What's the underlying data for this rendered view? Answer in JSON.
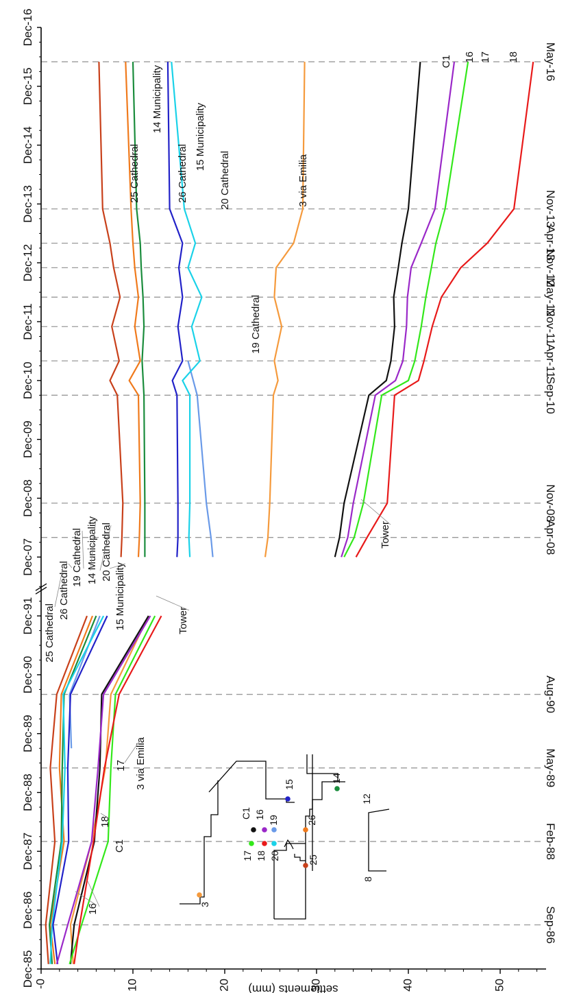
{
  "chart_data": {
    "type": "line",
    "ylabel": "settlements (mm)",
    "ylim": [
      0,
      55
    ],
    "y_ticks": [
      0,
      10,
      20,
      30,
      40,
      50
    ],
    "y_tick_labels": [
      "-0",
      "10",
      "20",
      "30",
      "40",
      "50"
    ],
    "x_axis_break": true,
    "x_ticks": [
      "Dec-85",
      "Dec-86",
      "Dec-87",
      "Dec-88",
      "Dec-89",
      "Dec-90",
      "Dec-91",
      "Dec-07",
      "Dec-08",
      "Dec-09",
      "Dec-10",
      "Dec-11",
      "Dec-12",
      "Dec-13",
      "Dec-14",
      "Dec-15",
      "Dec-16"
    ],
    "x_tick_index": [
      0,
      12,
      24,
      36,
      48,
      60,
      72,
      84,
      96,
      108,
      120,
      132,
      144,
      156,
      168,
      180,
      192
    ],
    "survey_dates": [
      {
        "label": "Sep-86",
        "x": 9
      },
      {
        "label": "Feb-88",
        "x": 26
      },
      {
        "label": "May-89",
        "x": 41
      },
      {
        "label": "Aug-90",
        "x": 56
      },
      {
        "label": "Apr-08",
        "x": 88
      },
      {
        "label": "Nov-08",
        "x": 95
      },
      {
        "label": "Sep-10",
        "x": 117
      },
      {
        "label": "Apr-11",
        "x": 124
      },
      {
        "label": "Nov-11",
        "x": 131
      },
      {
        "label": "May-12",
        "x": 137
      },
      {
        "label": "Nov-12",
        "x": 143
      },
      {
        "label": "Apr-13",
        "x": 148
      },
      {
        "label": "Nov-13",
        "x": 155
      },
      {
        "label": "May-16",
        "x": 185
      }
    ],
    "series": [
      {
        "name": "25 Cathedral",
        "color": "#c8401a",
        "segments": [
          [
            [
              1,
              0.8
            ],
            [
              9,
              0.5
            ],
            [
              26,
              1.5
            ],
            [
              41,
              1.0
            ],
            [
              56,
              1.7
            ],
            [
              72,
              5.0
            ]
          ],
          [
            [
              84,
              8.7
            ],
            [
              88,
              8.8
            ],
            [
              95,
              8.9
            ],
            [
              117,
              8.3
            ],
            [
              120,
              7.5
            ],
            [
              124,
              8.5
            ],
            [
              131,
              7.7
            ],
            [
              137,
              8.6
            ],
            [
              143,
              7.9
            ],
            [
              148,
              7.5
            ],
            [
              155,
              6.7
            ],
            [
              185,
              6.3
            ]
          ]
        ]
      },
      {
        "name": "26 Cathedral",
        "color": "#f07a1c",
        "segments": [
          [
            [
              1,
              1.5
            ],
            [
              9,
              1.0
            ],
            [
              26,
              2.5
            ],
            [
              41,
              2.0
            ],
            [
              56,
              2.2
            ],
            [
              72,
              5.6
            ]
          ],
          [
            [
              84,
              10.6
            ],
            [
              88,
              10.7
            ],
            [
              95,
              10.8
            ],
            [
              117,
              10.6
            ],
            [
              120,
              9.6
            ],
            [
              124,
              10.8
            ],
            [
              131,
              10.2
            ],
            [
              137,
              10.6
            ],
            [
              143,
              10.2
            ],
            [
              148,
              10.0
            ],
            [
              155,
              9.8
            ],
            [
              185,
              9.2
            ]
          ]
        ]
      },
      {
        "name": "14 Municipality",
        "color": "#1a8c3c",
        "segments": [
          [
            [
              1,
              1.2
            ],
            [
              9,
              0.9
            ],
            [
              26,
              2.2
            ],
            [
              41,
              2.3
            ],
            [
              56,
              2.5
            ],
            [
              72,
              6.0
            ]
          ],
          [
            [
              84,
              11.3
            ],
            [
              88,
              11.3
            ],
            [
              95,
              11.3
            ],
            [
              117,
              11.2
            ],
            [
              124,
              11.0
            ],
            [
              131,
              11.2
            ],
            [
              137,
              11.1
            ],
            [
              143,
              10.9
            ],
            [
              148,
              10.8
            ],
            [
              155,
              10.4
            ],
            [
              185,
              10.0
            ]
          ]
        ]
      },
      {
        "name": "19 Cathedral",
        "color": "#6a9ae8",
        "segments": [
          [
            [
              45,
              3.3
            ],
            [
              56,
              3.1
            ],
            [
              72,
              6.4
            ]
          ],
          [
            [
              84,
              18.7
            ],
            [
              88,
              18.5
            ],
            [
              95,
              18.0
            ],
            [
              117,
              17.0
            ],
            [
              124,
              16.0
            ]
          ]
        ]
      },
      {
        "name": "20 Cathedral",
        "color": "#1ad2e8",
        "segments": [
          [
            [
              1,
              1.0
            ],
            [
              9,
              1.2
            ],
            [
              26,
              2.3
            ],
            [
              41,
              2.6
            ],
            [
              56,
              2.4
            ],
            [
              72,
              6.8
            ]
          ],
          [
            [
              84,
              16.2
            ],
            [
              88,
              16.1
            ],
            [
              95,
              16.2
            ],
            [
              117,
              16.2
            ],
            [
              120,
              15.4
            ],
            [
              124,
              17.3
            ],
            [
              131,
              16.4
            ],
            [
              137,
              17.5
            ],
            [
              143,
              16.0
            ],
            [
              148,
              16.8
            ],
            [
              155,
              15.6
            ],
            [
              185,
              14.2
            ]
          ]
        ]
      },
      {
        "name": "15 Municipality",
        "color": "#2222c8",
        "segments": [
          [
            [
              1,
              1.8
            ],
            [
              9,
              1.3
            ],
            [
              26,
              3.0
            ],
            [
              41,
              2.9
            ],
            [
              56,
              3.2
            ],
            [
              72,
              7.2
            ]
          ],
          [
            [
              84,
              14.8
            ],
            [
              88,
              14.9
            ],
            [
              95,
              14.9
            ],
            [
              117,
              14.8
            ],
            [
              120,
              14.3
            ],
            [
              124,
              15.4
            ],
            [
              131,
              14.9
            ],
            [
              137,
              15.4
            ],
            [
              143,
              15.0
            ],
            [
              148,
              15.4
            ],
            [
              155,
              14.0
            ],
            [
              185,
              13.8
            ]
          ]
        ]
      },
      {
        "name": "3 via Emilia",
        "color": "#f59a3c",
        "segments": [
          [
            [
              1,
              3.5
            ],
            [
              9,
              3.2
            ],
            [
              26,
              5.5
            ],
            [
              41,
              7.0
            ],
            [
              56,
              7.6
            ],
            [
              72,
              11.7
            ]
          ],
          [
            [
              84,
              24.4
            ],
            [
              88,
              24.7
            ],
            [
              95,
              24.9
            ],
            [
              117,
              25.3
            ],
            [
              120,
              25.8
            ],
            [
              124,
              25.4
            ],
            [
              131,
              26.2
            ],
            [
              137,
              25.4
            ],
            [
              143,
              25.6
            ],
            [
              148,
              27.5
            ],
            [
              155,
              28.5
            ],
            [
              185,
              28.7
            ]
          ]
        ]
      },
      {
        "name": "C1",
        "color": "#111111",
        "segments": [
          [
            [
              1,
              3.2
            ],
            [
              9,
              3.6
            ],
            [
              26,
              5.8
            ],
            [
              41,
              6.4
            ],
            [
              56,
              6.6
            ],
            [
              72,
              11.7
            ]
          ],
          [
            [
              84,
              32.0
            ],
            [
              88,
              32.5
            ],
            [
              95,
              33.0
            ],
            [
              117,
              35.7
            ],
            [
              120,
              37.6
            ],
            [
              124,
              38.1
            ],
            [
              131,
              38.5
            ],
            [
              137,
              38.4
            ],
            [
              143,
              38.9
            ],
            [
              148,
              39.3
            ],
            [
              155,
              40.0
            ],
            [
              185,
              41.3
            ]
          ]
        ]
      },
      {
        "name": "16",
        "color": "#9a28c8",
        "segments": [
          [
            [
              1,
              1.7
            ],
            [
              9,
              2.9
            ],
            [
              26,
              5.5
            ],
            [
              41,
              6.2
            ],
            [
              56,
              6.8
            ],
            [
              72,
              11.9
            ]
          ],
          [
            [
              84,
              32.7
            ],
            [
              88,
              33.4
            ],
            [
              95,
              34.0
            ],
            [
              117,
              36.4
            ],
            [
              120,
              38.6
            ],
            [
              124,
              39.4
            ],
            [
              131,
              39.8
            ],
            [
              137,
              39.9
            ],
            [
              143,
              40.3
            ],
            [
              148,
              41.4
            ],
            [
              155,
              42.9
            ],
            [
              185,
              45.0
            ]
          ]
        ]
      },
      {
        "name": "17",
        "color": "#33e81a",
        "segments": [
          [
            [
              1,
              3.1
            ],
            [
              9,
              4.4
            ],
            [
              26,
              7.3
            ],
            [
              41,
              7.6
            ],
            [
              56,
              8.1
            ],
            [
              72,
              12.4
            ]
          ],
          [
            [
              84,
              33.0
            ],
            [
              88,
              34.1
            ],
            [
              95,
              35.1
            ],
            [
              117,
              37.1
            ],
            [
              120,
              40.0
            ],
            [
              124,
              40.7
            ],
            [
              131,
              41.4
            ],
            [
              137,
              41.9
            ],
            [
              143,
              42.5
            ],
            [
              148,
              43.0
            ],
            [
              155,
              44.0
            ],
            [
              185,
              46.5
            ]
          ]
        ]
      },
      {
        "name": "18",
        "color": "#e81a1a",
        "segments": [
          [
            [
              1,
              3.6
            ],
            [
              9,
              4.2
            ],
            [
              26,
              5.7
            ],
            [
              41,
              6.9
            ],
            [
              56,
              8.5
            ],
            [
              72,
              13.1
            ]
          ],
          [
            [
              84,
              34.3
            ],
            [
              88,
              35.5
            ],
            [
              95,
              37.7
            ],
            [
              117,
              38.5
            ],
            [
              120,
              41.1
            ],
            [
              124,
              41.7
            ],
            [
              131,
              42.6
            ],
            [
              137,
              43.6
            ],
            [
              143,
              45.7
            ],
            [
              148,
              48.6
            ],
            [
              155,
              51.5
            ],
            [
              185,
              53.6
            ]
          ]
        ]
      }
    ],
    "annotations": [
      "25 Cathedral",
      "26 Cathedral",
      "19 Cathedral",
      "14 Municipality",
      "20 Cathedral",
      "15 Municipality",
      "Tower",
      "3 via Emilia",
      "17",
      "18",
      "C1",
      "16",
      "14 Municipality",
      "25 Cathedral",
      "26 Cathedral",
      "15 Municipality",
      "20 Cathedral",
      "3 via Emilia",
      "19 Cathedral",
      "Tower",
      "C1",
      "16",
      "17",
      "18"
    ],
    "site_plan_labels": [
      "3",
      "C1",
      "16",
      "17",
      "18",
      "20",
      "19",
      "26",
      "25",
      "15",
      "14",
      "12",
      "8"
    ],
    "site_plan_colors": {
      "3": "#f59a3c",
      "C1": "#111111",
      "16": "#9a28c8",
      "17": "#33e81a",
      "18": "#e81a1a",
      "20": "#1ad2e8",
      "19": "#6a9ae8",
      "26": "#f07a1c",
      "25": "#c8401a",
      "15": "#2222c8",
      "14": "#1a8c3c"
    }
  }
}
